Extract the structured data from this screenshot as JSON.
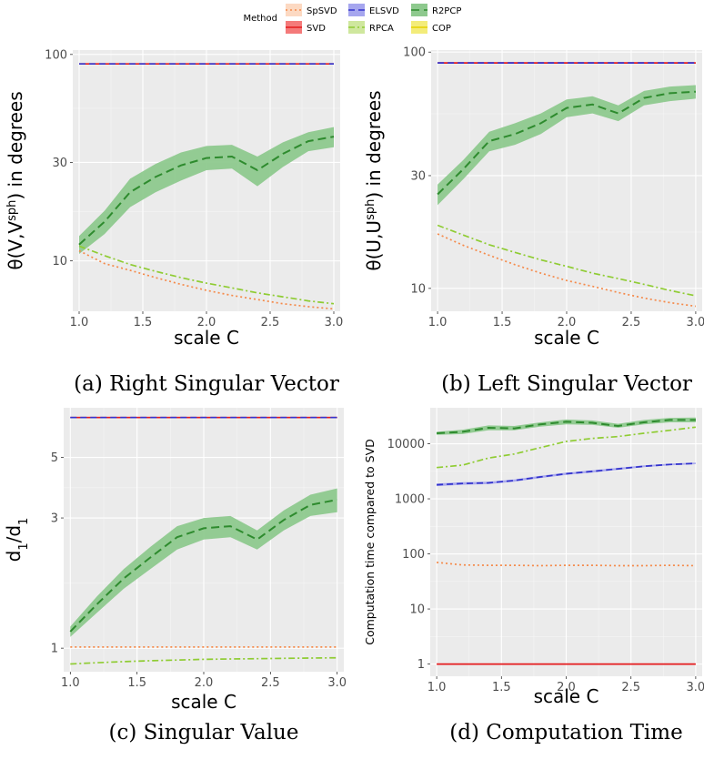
{
  "legend": {
    "title": "Method",
    "items": [
      {
        "name": "SpSVD",
        "color": "#f58a4a",
        "dash": "2,3",
        "fill": "#fcd9c2"
      },
      {
        "name": "SVD",
        "color": "#e41a1c",
        "dash": "",
        "fill": "#f47a7a"
      },
      {
        "name": "ELSVD",
        "color": "#3333cc",
        "dash": "7,4",
        "fill": "#a6a6ee"
      },
      {
        "name": "RPCA",
        "color": "#8fcc33",
        "dash": "7,3,2,3",
        "fill": "#cfe79e"
      },
      {
        "name": "R2PCP",
        "color": "#2e8b2e",
        "dash": "9,5",
        "fill": "#8ec98e"
      },
      {
        "name": "COP",
        "color": "#e6d200",
        "dash": "",
        "fill": "#f3ec7a"
      }
    ]
  },
  "chart_data": [
    {
      "type": "line",
      "caption": "(a) Right Singular Vector",
      "xlabel": "scale C",
      "ylabel_main": "θ(V,V",
      "ylabel_sup": "sph",
      "ylabel_tail": ") in degrees",
      "yscale": "log",
      "xlim": [
        0.95,
        3.05
      ],
      "ylim": [
        5.7,
        105
      ],
      "xticks": [
        1.0,
        1.5,
        2.0,
        2.5,
        3.0
      ],
      "xtick_labels": [
        "1.0",
        "1.5",
        "2.0",
        "2.5",
        "3.0"
      ],
      "yticks": [
        10,
        30,
        100
      ],
      "ytick_labels": [
        "10",
        "30",
        "100"
      ],
      "x": [
        1.0,
        1.2,
        1.4,
        1.6,
        1.8,
        2.0,
        2.2,
        2.4,
        2.6,
        2.8,
        3.0
      ],
      "series": [
        {
          "name": "SVD",
          "values": [
            90,
            90,
            90,
            90,
            90,
            90,
            90,
            90,
            90,
            90,
            90
          ]
        },
        {
          "name": "ELSVD",
          "values": [
            90,
            90,
            90,
            90,
            90,
            90,
            90,
            90,
            90,
            90,
            90
          ]
        },
        {
          "name": "R2PCP",
          "values": [
            12,
            15.5,
            21.5,
            25.5,
            29,
            31.5,
            32,
            27.5,
            33,
            38,
            40
          ],
          "lower": [
            10.8,
            13.5,
            18.2,
            21.5,
            24.5,
            27.5,
            28,
            23,
            28.5,
            34,
            35.5
          ],
          "upper": [
            13.2,
            17.5,
            25,
            29.5,
            33.5,
            36,
            36.5,
            32,
            37.5,
            42,
            44.5
          ]
        },
        {
          "name": "RPCA",
          "values": [
            11.8,
            10.6,
            9.6,
            8.9,
            8.3,
            7.8,
            7.4,
            7.0,
            6.7,
            6.4,
            6.2
          ]
        },
        {
          "name": "SpSVD",
          "values": [
            11.2,
            9.7,
            9.0,
            8.3,
            7.7,
            7.2,
            6.8,
            6.5,
            6.2,
            6.0,
            5.85
          ]
        }
      ]
    },
    {
      "type": "line",
      "caption": "(b) Left Singular Vector",
      "xlabel": "scale C",
      "ylabel_main": "θ(U,U",
      "ylabel_sup": "sph",
      "ylabel_tail": ") in degrees",
      "yscale": "log",
      "xlim": [
        0.95,
        3.05
      ],
      "ylim": [
        8.0,
        102
      ],
      "xticks": [
        1.0,
        1.5,
        2.0,
        2.5,
        3.0
      ],
      "xtick_labels": [
        "1.0",
        "1.5",
        "2.0",
        "2.5",
        "3.0"
      ],
      "yticks": [
        10,
        30,
        100
      ],
      "ytick_labels": [
        "10",
        "30",
        "100"
      ],
      "x": [
        1.0,
        1.2,
        1.4,
        1.6,
        1.8,
        2.0,
        2.2,
        2.4,
        2.6,
        2.8,
        3.0
      ],
      "series": [
        {
          "name": "SVD",
          "values": [
            90,
            90,
            90,
            90,
            90,
            90,
            90,
            90,
            90,
            90,
            90
          ]
        },
        {
          "name": "ELSVD",
          "values": [
            90,
            90,
            90,
            90,
            90,
            90,
            90,
            90,
            90,
            90,
            90
          ]
        },
        {
          "name": "R2PCP",
          "values": [
            25,
            32,
            42,
            45,
            50,
            58,
            60,
            55,
            64,
            67,
            68
          ],
          "lower": [
            22.5,
            29,
            38,
            40.5,
            45,
            53,
            55,
            51,
            59.5,
            62,
            63.5
          ],
          "upper": [
            27.5,
            35,
            46,
            50,
            55,
            63,
            65,
            59.5,
            68.5,
            71.5,
            72.5
          ]
        },
        {
          "name": "RPCA",
          "values": [
            18.5,
            16.8,
            15.3,
            14.2,
            13.2,
            12.4,
            11.6,
            11.0,
            10.4,
            9.8,
            9.3
          ]
        },
        {
          "name": "SpSVD",
          "values": [
            17.0,
            15.2,
            13.8,
            12.6,
            11.6,
            10.8,
            10.2,
            9.6,
            9.1,
            8.7,
            8.4
          ]
        }
      ]
    },
    {
      "type": "line",
      "caption": "(c) Singular Value",
      "xlabel": "scale C",
      "ylabel_main": "d",
      "ylabel_sub1": "1",
      "ylabel_slash": "/d",
      "ylabel_sub2": "1",
      "ylabel_hat": "^",
      "yscale": "log",
      "xlim": [
        0.95,
        3.05
      ],
      "ylim": [
        0.82,
        7.6
      ],
      "xticks": [
        1.0,
        1.5,
        2.0,
        2.5,
        3.0
      ],
      "xtick_labels": [
        "1.0",
        "1.5",
        "2.0",
        "2.5",
        "3.0"
      ],
      "yticks": [
        1,
        3,
        5
      ],
      "ytick_labels": [
        "1",
        "3",
        "5"
      ],
      "x": [
        1.0,
        1.2,
        1.4,
        1.6,
        1.8,
        2.0,
        2.2,
        2.4,
        2.6,
        2.8,
        3.0
      ],
      "series": [
        {
          "name": "SVD",
          "values": [
            7.0,
            7.0,
            7.0,
            7.0,
            7.0,
            7.0,
            7.0,
            7.0,
            7.0,
            7.0,
            7.0
          ]
        },
        {
          "name": "ELSVD",
          "values": [
            7.0,
            7.0,
            7.0,
            7.0,
            7.0,
            7.0,
            7.0,
            7.0,
            7.0,
            7.0,
            7.0
          ]
        },
        {
          "name": "R2PCP",
          "values": [
            1.15,
            1.45,
            1.8,
            2.15,
            2.55,
            2.75,
            2.8,
            2.5,
            2.95,
            3.35,
            3.5
          ],
          "lower": [
            1.1,
            1.35,
            1.65,
            1.95,
            2.3,
            2.5,
            2.55,
            2.3,
            2.7,
            3.05,
            3.15
          ],
          "upper": [
            1.2,
            1.55,
            1.95,
            2.35,
            2.8,
            3.0,
            3.05,
            2.7,
            3.2,
            3.65,
            3.85
          ]
        },
        {
          "name": "SpSVD",
          "values": [
            1.01,
            1.01,
            1.01,
            1.01,
            1.01,
            1.01,
            1.01,
            1.01,
            1.01,
            1.01,
            1.01
          ]
        },
        {
          "name": "RPCA",
          "values": [
            0.875,
            0.885,
            0.893,
            0.9,
            0.905,
            0.91,
            0.913,
            0.915,
            0.918,
            0.92,
            0.922
          ]
        }
      ]
    },
    {
      "type": "line",
      "caption": "(d) Computation Time",
      "xlabel": "scale C",
      "ylabel_main": "Computation time compared to SVD",
      "yscale": "log",
      "xlim": [
        0.95,
        3.05
      ],
      "ylim": [
        0.6,
        45000
      ],
      "xticks": [
        1.0,
        1.5,
        2.0,
        2.5,
        3.0
      ],
      "xtick_labels": [
        "1.0",
        "1.5",
        "2.0",
        "2.5",
        "3.0"
      ],
      "yticks": [
        1,
        10,
        100,
        1000,
        10000
      ],
      "ytick_labels": [
        "1",
        "10",
        "100",
        "1000",
        "10000"
      ],
      "x": [
        1.0,
        1.2,
        1.4,
        1.6,
        1.8,
        2.0,
        2.2,
        2.4,
        2.6,
        2.8,
        3.0
      ],
      "series": [
        {
          "name": "SVD",
          "values": [
            1,
            1,
            1,
            1,
            1,
            1,
            1,
            1,
            1,
            1,
            1
          ]
        },
        {
          "name": "SpSVD",
          "values": [
            70,
            63,
            62,
            62,
            61,
            62,
            62,
            61,
            61,
            62,
            61
          ]
        },
        {
          "name": "ELSVD",
          "values": [
            1800,
            1900,
            1950,
            2150,
            2500,
            2850,
            3150,
            3500,
            3900,
            4200,
            4400
          ],
          "lower": [
            1700,
            1800,
            1850,
            2050,
            2380,
            2720,
            3000,
            3350,
            3750,
            4050,
            4250
          ],
          "upper": [
            1900,
            2000,
            2050,
            2250,
            2620,
            2980,
            3300,
            3650,
            4050,
            4350,
            4550
          ]
        },
        {
          "name": "RPCA",
          "values": [
            3700,
            4100,
            5500,
            6500,
            8500,
            11000,
            12500,
            13500,
            15500,
            17500,
            20000
          ]
        },
        {
          "name": "R2PCP",
          "values": [
            15500,
            16500,
            19500,
            19000,
            22500,
            25000,
            24000,
            21000,
            24500,
            27000,
            27000
          ],
          "lower": [
            14500,
            15000,
            17500,
            17500,
            20500,
            22500,
            22000,
            19500,
            22500,
            24500,
            24500
          ],
          "upper": [
            16500,
            18000,
            21500,
            21000,
            24500,
            27500,
            26500,
            23000,
            27000,
            29500,
            30000
          ]
        }
      ]
    }
  ]
}
